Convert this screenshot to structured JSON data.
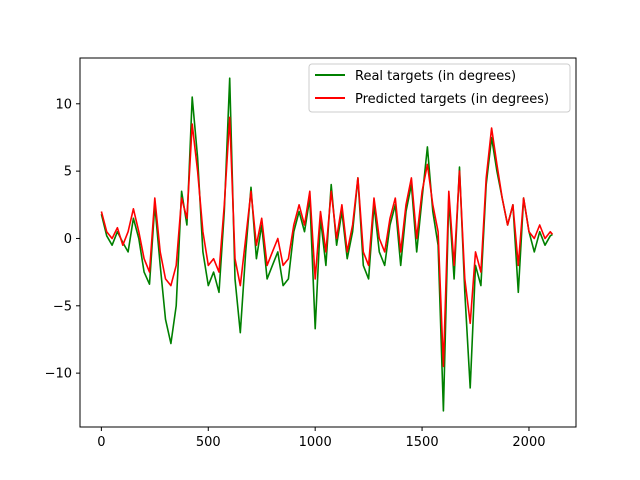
{
  "chart_data": {
    "type": "line",
    "title": "",
    "xlabel": "",
    "ylabel": "",
    "xlim": [
      -100,
      2220
    ],
    "ylim": [
      -14,
      13.4
    ],
    "xticks": [
      0,
      500,
      1000,
      1500,
      2000
    ],
    "yticks": [
      -10,
      -5,
      0,
      5,
      10
    ],
    "xtick_labels": [
      "0",
      "500",
      "1000",
      "1500",
      "2000"
    ],
    "ytick_labels": [
      "−10",
      "−5",
      "0",
      "5",
      "10"
    ],
    "grid": false,
    "legend_position": "top-right",
    "series": [
      {
        "name": "Real targets (in degrees)",
        "color": "#008000",
        "x": [
          0,
          25,
          50,
          75,
          100,
          125,
          150,
          175,
          200,
          225,
          250,
          275,
          300,
          325,
          350,
          375,
          400,
          425,
          450,
          475,
          500,
          525,
          550,
          575,
          600,
          625,
          650,
          675,
          700,
          725,
          750,
          775,
          800,
          825,
          850,
          875,
          900,
          925,
          950,
          975,
          1000,
          1025,
          1050,
          1075,
          1100,
          1125,
          1150,
          1175,
          1200,
          1225,
          1250,
          1275,
          1300,
          1325,
          1350,
          1375,
          1400,
          1425,
          1450,
          1475,
          1500,
          1525,
          1550,
          1575,
          1600,
          1625,
          1650,
          1675,
          1700,
          1725,
          1750,
          1775,
          1800,
          1825,
          1850,
          1875,
          1900,
          1925,
          1950,
          1975,
          2000,
          2025,
          2050,
          2075,
          2100,
          2110
        ],
        "y": [
          1.8,
          0.2,
          -0.5,
          0.5,
          -0.3,
          -1.0,
          1.5,
          0.0,
          -2.5,
          -3.4,
          2.5,
          -2.0,
          -6.0,
          -7.8,
          -5.0,
          3.5,
          1.0,
          10.5,
          6.0,
          -1.0,
          -3.5,
          -2.5,
          -4.0,
          2.0,
          11.9,
          -3.0,
          -7.0,
          -1.0,
          3.8,
          -1.5,
          1.0,
          -3.0,
          -2.0,
          -1.0,
          -3.5,
          -3.0,
          0.5,
          2.0,
          0.5,
          3.0,
          -6.7,
          1.5,
          -2.0,
          4.0,
          -0.5,
          2.0,
          -1.5,
          0.5,
          4.5,
          -2.0,
          -3.0,
          2.5,
          -1.0,
          -2.0,
          1.0,
          2.5,
          -2.0,
          2.0,
          4.0,
          -1.0,
          3.0,
          6.8,
          2.0,
          -0.5,
          -12.8,
          3.0,
          -3.0,
          5.3,
          -4.0,
          -11.1,
          -2.0,
          -3.5,
          4.0,
          7.5,
          5.0,
          3.0,
          1.0,
          2.5,
          -4.0,
          3.0,
          0.5,
          -1.0,
          0.5,
          -0.5,
          0.2,
          0.3
        ]
      },
      {
        "name": "Predicted targets (in degrees)",
        "color": "#ff0000",
        "x": [
          0,
          25,
          50,
          75,
          100,
          125,
          150,
          175,
          200,
          225,
          250,
          275,
          300,
          325,
          350,
          375,
          400,
          425,
          450,
          475,
          500,
          525,
          550,
          575,
          600,
          625,
          650,
          675,
          700,
          725,
          750,
          775,
          800,
          825,
          850,
          875,
          900,
          925,
          950,
          975,
          1000,
          1025,
          1050,
          1075,
          1100,
          1125,
          1150,
          1175,
          1200,
          1225,
          1250,
          1275,
          1300,
          1325,
          1350,
          1375,
          1400,
          1425,
          1450,
          1475,
          1500,
          1525,
          1550,
          1575,
          1600,
          1625,
          1650,
          1675,
          1700,
          1725,
          1750,
          1775,
          1800,
          1825,
          1850,
          1875,
          1900,
          1925,
          1950,
          1975,
          2000,
          2025,
          2050,
          2075,
          2100,
          2110
        ],
        "y": [
          2.0,
          0.5,
          0.0,
          0.8,
          -0.5,
          0.5,
          2.2,
          0.5,
          -1.5,
          -2.5,
          3.0,
          -1.0,
          -3.0,
          -3.5,
          -2.0,
          3.0,
          1.5,
          8.5,
          5.0,
          0.5,
          -2.0,
          -1.5,
          -2.5,
          2.5,
          9.0,
          -1.5,
          -3.5,
          0.0,
          3.5,
          -0.5,
          1.5,
          -2.0,
          -1.0,
          0.0,
          -2.0,
          -1.5,
          1.0,
          2.5,
          1.0,
          3.5,
          -3.0,
          2.0,
          -1.0,
          3.5,
          0.0,
          2.5,
          -1.0,
          1.0,
          4.5,
          -1.0,
          -2.0,
          3.0,
          0.0,
          -1.0,
          1.5,
          3.0,
          -1.0,
          2.5,
          4.5,
          0.0,
          3.5,
          5.5,
          2.5,
          0.5,
          -9.5,
          3.5,
          -2.0,
          5.0,
          -3.0,
          -6.3,
          -1.0,
          -2.5,
          4.5,
          8.2,
          5.5,
          3.0,
          1.0,
          2.5,
          -2.0,
          3.0,
          0.5,
          0.0,
          1.0,
          0.0,
          0.5,
          0.3
        ]
      }
    ]
  }
}
